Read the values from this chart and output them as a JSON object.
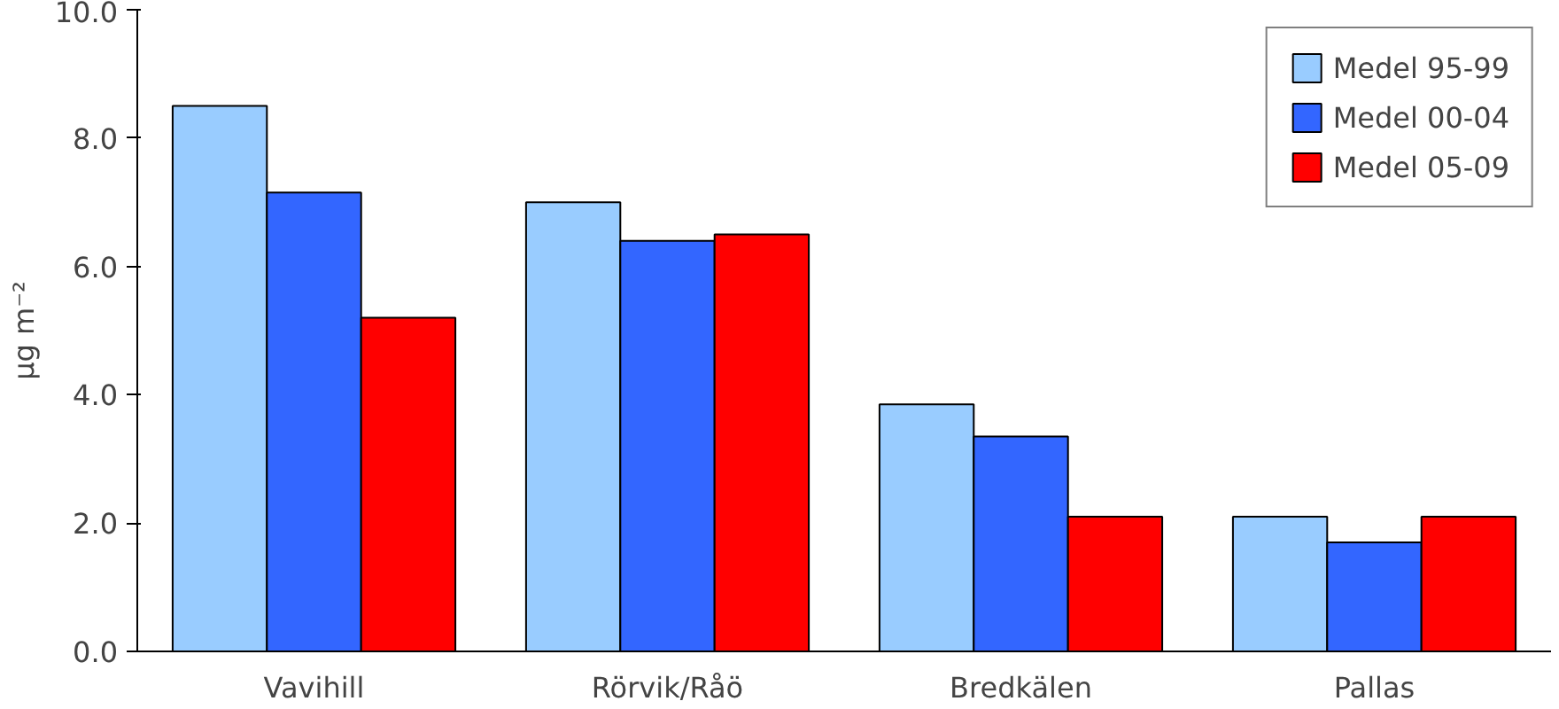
{
  "chart_data": {
    "type": "bar",
    "ylabel": "µg m⁻²",
    "categories": [
      "Vavihill",
      "Rörvik/Råö",
      "Bredkälen",
      "Pallas"
    ],
    "series": [
      {
        "name": "Medel 95-99",
        "color": "#99ccff",
        "values": [
          8.5,
          7.0,
          3.85,
          2.1
        ]
      },
      {
        "name": "Medel 00-04",
        "color": "#3366ff",
        "values": [
          7.15,
          6.4,
          3.35,
          1.7
        ]
      },
      {
        "name": "Medel 05-09",
        "color": "#ff0000",
        "values": [
          5.2,
          6.5,
          2.1,
          2.1
        ]
      }
    ],
    "ylim": [
      0,
      10
    ],
    "yticks": [
      {
        "value": 0,
        "label": "0.0"
      },
      {
        "value": 2,
        "label": "2.0"
      },
      {
        "value": 4,
        "label": "4.0"
      },
      {
        "value": 6,
        "label": "6.0"
      },
      {
        "value": 8,
        "label": "8.0"
      },
      {
        "value": 10,
        "label": "10.0"
      }
    ],
    "grid": false,
    "legend": "top right"
  }
}
